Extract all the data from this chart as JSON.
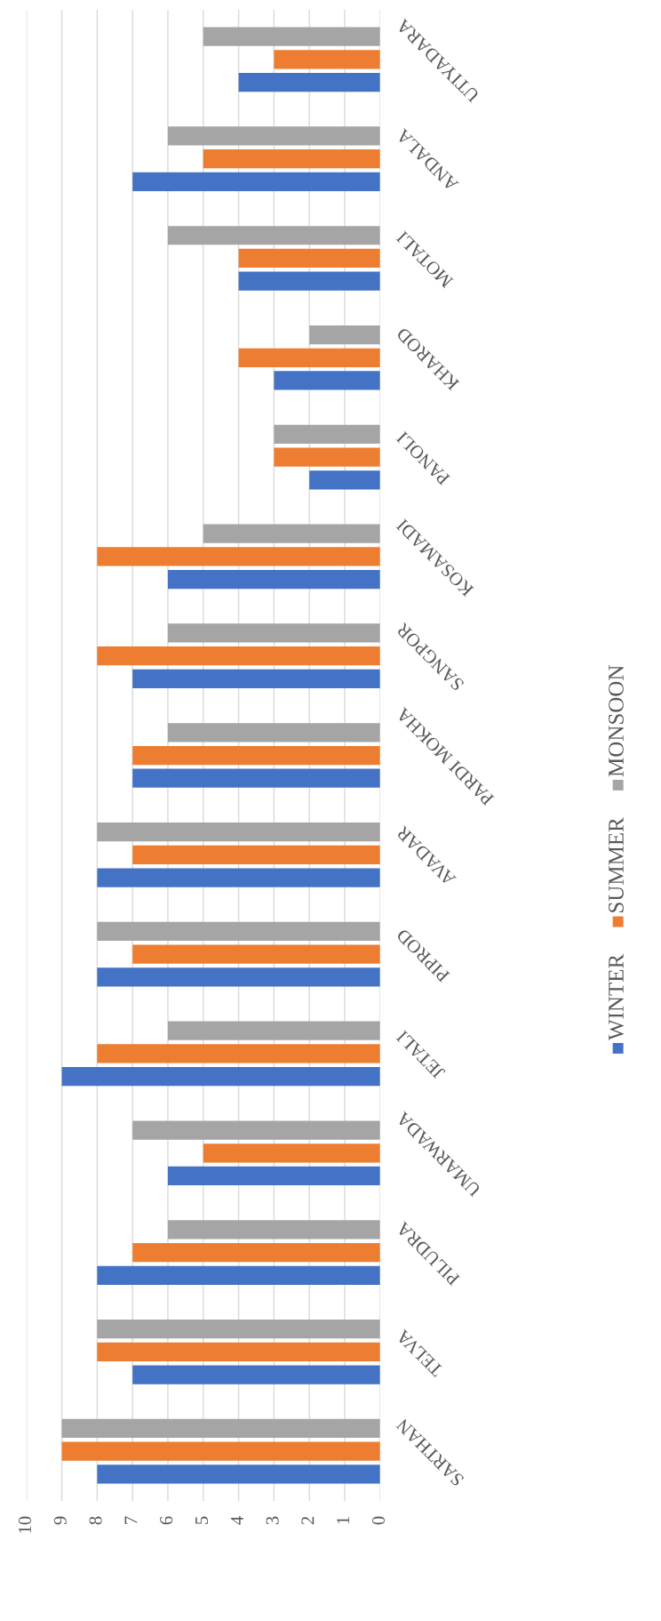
{
  "chart_data": {
    "type": "bar",
    "orientation": "horizontal",
    "categories": [
      "UTIYADARA",
      "ANDALA",
      "MOTALI",
      "KHAROD",
      "PANOLI",
      "KOSAMADI",
      "SANGPOR",
      "PARDI MOKHA",
      "AVADAR",
      "PIPROD",
      "JETALI",
      "UMARWADA",
      "PILUDRA",
      "TELVA",
      "SARTHAN"
    ],
    "series": [
      {
        "name": "MONSOON",
        "color": "#a5a5a5",
        "values": [
          5,
          6,
          6,
          2,
          3,
          5,
          6,
          6,
          8,
          8,
          6,
          7,
          6,
          8,
          9
        ]
      },
      {
        "name": "SUMMER",
        "color": "#ed7d31",
        "values": [
          3,
          5,
          4,
          4,
          3,
          8,
          8,
          7,
          7,
          7,
          8,
          5,
          7,
          8,
          9
        ]
      },
      {
        "name": "WINTER",
        "color": "#4472c4",
        "values": [
          4,
          7,
          4,
          3,
          2,
          6,
          7,
          7,
          8,
          8,
          9,
          6,
          8,
          7,
          8
        ]
      }
    ],
    "xlim": [
      10,
      0
    ],
    "xticks": [
      0,
      1,
      2,
      3,
      4,
      5,
      6,
      7,
      8,
      9,
      10
    ],
    "grid": "x",
    "legend": "right"
  }
}
